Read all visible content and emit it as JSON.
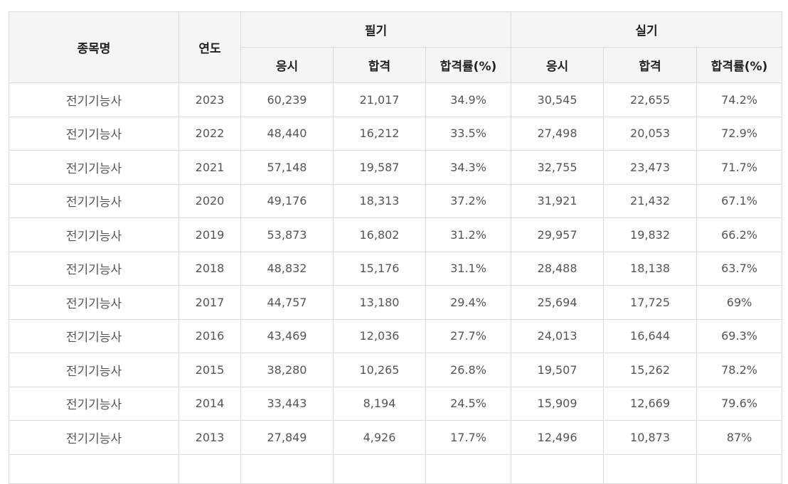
{
  "table": {
    "headers": {
      "name": "종목명",
      "year": "연도",
      "written": "필기",
      "practical": "실기",
      "applicants": "응시",
      "passed": "합격",
      "pass_rate": "합격률(%)"
    },
    "rows": [
      {
        "name": "전기기능사",
        "year": "2023",
        "w_applicants": "60,239",
        "w_passed": "21,017",
        "w_rate": "34.9%",
        "p_applicants": "30,545",
        "p_passed": "22,655",
        "p_rate": "74.2%"
      },
      {
        "name": "전기기능사",
        "year": "2022",
        "w_applicants": "48,440",
        "w_passed": "16,212",
        "w_rate": "33.5%",
        "p_applicants": "27,498",
        "p_passed": "20,053",
        "p_rate": "72.9%"
      },
      {
        "name": "전기기능사",
        "year": "2021",
        "w_applicants": "57,148",
        "w_passed": "19,587",
        "w_rate": "34.3%",
        "p_applicants": "32,755",
        "p_passed": "23,473",
        "p_rate": "71.7%"
      },
      {
        "name": "전기기능사",
        "year": "2020",
        "w_applicants": "49,176",
        "w_passed": "18,313",
        "w_rate": "37.2%",
        "p_applicants": "31,921",
        "p_passed": "21,432",
        "p_rate": "67.1%"
      },
      {
        "name": "전기기능사",
        "year": "2019",
        "w_applicants": "53,873",
        "w_passed": "16,802",
        "w_rate": "31.2%",
        "p_applicants": "29,957",
        "p_passed": "19,832",
        "p_rate": "66.2%"
      },
      {
        "name": "전기기능사",
        "year": "2018",
        "w_applicants": "48,832",
        "w_passed": "15,176",
        "w_rate": "31.1%",
        "p_applicants": "28,488",
        "p_passed": "18,138",
        "p_rate": "63.7%"
      },
      {
        "name": "전기기능사",
        "year": "2017",
        "w_applicants": "44,757",
        "w_passed": "13,180",
        "w_rate": "29.4%",
        "p_applicants": "25,694",
        "p_passed": "17,725",
        "p_rate": "69%"
      },
      {
        "name": "전기기능사",
        "year": "2016",
        "w_applicants": "43,469",
        "w_passed": "12,036",
        "w_rate": "27.7%",
        "p_applicants": "24,013",
        "p_passed": "16,644",
        "p_rate": "69.3%"
      },
      {
        "name": "전기기능사",
        "year": "2015",
        "w_applicants": "38,280",
        "w_passed": "10,265",
        "w_rate": "26.8%",
        "p_applicants": "19,507",
        "p_passed": "15,262",
        "p_rate": "78.2%"
      },
      {
        "name": "전기기능사",
        "year": "2014",
        "w_applicants": "33,443",
        "w_passed": "8,194",
        "w_rate": "24.5%",
        "p_applicants": "15,909",
        "p_passed": "12,669",
        "p_rate": "79.6%"
      },
      {
        "name": "전기기능사",
        "year": "2013",
        "w_applicants": "27,849",
        "w_passed": "4,926",
        "w_rate": "17.7%",
        "p_applicants": "12,496",
        "p_passed": "10,873",
        "p_rate": "87%"
      }
    ]
  }
}
